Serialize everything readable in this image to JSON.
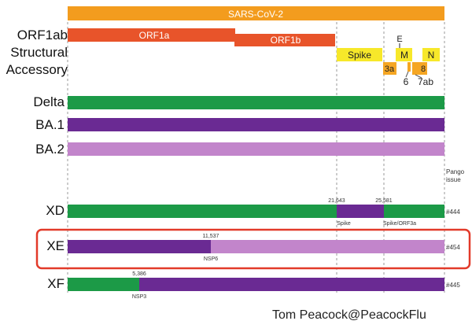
{
  "genome_title": "SARS-CoV-2",
  "track_labels": {
    "orf1ab": "ORF1ab",
    "structural": "Structural",
    "accessory": "Accessory",
    "delta": "Delta",
    "ba1": "BA.1",
    "ba2": "BA.2",
    "xd": "XD",
    "xe": "XE",
    "xf": "XF"
  },
  "genes": {
    "orf1a": "ORF1a",
    "orf1b": "ORF1b",
    "spike": "Spike",
    "e": "E",
    "m": "M",
    "n": "N",
    "3a": "3a",
    "6": "6",
    "7ab": "7ab",
    "8": "8"
  },
  "pango_header": "Pango issue",
  "recombinants": {
    "xd": {
      "issue": "#444",
      "breakpoints": [
        "21,643",
        "25,581"
      ],
      "regions": [
        "Spike",
        "Spike/ORF3a"
      ]
    },
    "xe": {
      "issue": "#454",
      "breakpoint": "11,537",
      "region": "NSP6"
    },
    "xf": {
      "issue": "#445",
      "breakpoint": "5,386",
      "region": "NSP3"
    }
  },
  "credit": "Tom Peacock@PeacockFlu",
  "colors": {
    "genome": "#F39C1E",
    "orf1": "#E8542A",
    "spike": "#F7E82A",
    "accessory": "#F5A623",
    "delta": "#1C9A47",
    "ba1": "#6A2A93",
    "ba2": "#C285CB",
    "highlight": "#E23A2A"
  }
}
